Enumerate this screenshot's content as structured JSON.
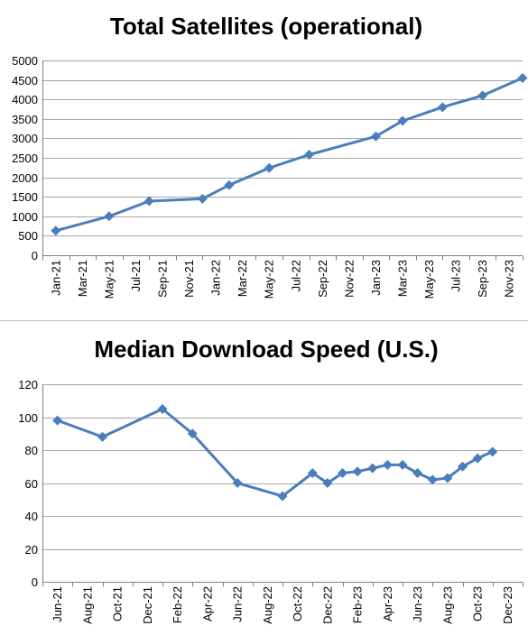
{
  "chart_data": [
    {
      "type": "line",
      "title": "Total Satellites (operational)",
      "xlabel": "",
      "ylabel": "",
      "ylim": [
        0,
        5000
      ],
      "y_step": 500,
      "grid": true,
      "legend": "none",
      "color": "#4a7ebb",
      "marker": "diamond",
      "categories": [
        "Jan-21",
        "Mar-21",
        "May-21",
        "Jul-21",
        "Sep-21",
        "Nov-21",
        "Jan-22",
        "Mar-22",
        "May-22",
        "Jul-22",
        "Sep-22",
        "Nov-22",
        "Jan-23",
        "Mar-23",
        "May-23",
        "Jul-23",
        "Sep-23",
        "Nov-23"
      ],
      "points": [
        {
          "x": "Jan-21",
          "y": 630
        },
        {
          "x": "May-21",
          "y": 1000
        },
        {
          "x": "Aug-21",
          "y": 1390
        },
        {
          "x": "Dec-21",
          "y": 1450
        },
        {
          "x": "Feb-22",
          "y": 1800
        },
        {
          "x": "May-22",
          "y": 2240
        },
        {
          "x": "Aug-22",
          "y": 2580
        },
        {
          "x": "Jan-23",
          "y": 3050
        },
        {
          "x": "Mar-23",
          "y": 3450
        },
        {
          "x": "Jun-23",
          "y": 3800
        },
        {
          "x": "Sep-23",
          "y": 4100
        },
        {
          "x": "Dec-23",
          "y": 4550
        }
      ]
    },
    {
      "type": "line",
      "title": "Median Download Speed (U.S.)",
      "xlabel": "",
      "ylabel": "",
      "ylim": [
        0,
        120
      ],
      "y_step": 20,
      "grid": true,
      "legend": "none",
      "color": "#4a7ebb",
      "marker": "diamond",
      "categories": [
        "Jun-21",
        "Aug-21",
        "Oct-21",
        "Dec-21",
        "Feb-22",
        "Apr-22",
        "Jun-22",
        "Aug-22",
        "Oct-22",
        "Dec-22",
        "Feb-23",
        "Apr-23",
        "Jun-23",
        "Aug-23",
        "Oct-23",
        "Dec-23"
      ],
      "points": [
        {
          "x": "Jun-21",
          "y": 98
        },
        {
          "x": "Sep-21",
          "y": 88
        },
        {
          "x": "Jan-22",
          "y": 105
        },
        {
          "x": "Mar-22",
          "y": 90
        },
        {
          "x": "Jun-22",
          "y": 60
        },
        {
          "x": "Sep-22",
          "y": 52
        },
        {
          "x": "Nov-22",
          "y": 66
        },
        {
          "x": "Dec-22",
          "y": 60
        },
        {
          "x": "Jan-23",
          "y": 66
        },
        {
          "x": "Feb-23",
          "y": 67
        },
        {
          "x": "Mar-23",
          "y": 69
        },
        {
          "x": "Apr-23",
          "y": 71
        },
        {
          "x": "May-23",
          "y": 71
        },
        {
          "x": "Jun-23",
          "y": 66
        },
        {
          "x": "Jul-23",
          "y": 62
        },
        {
          "x": "Aug-23",
          "y": 63
        },
        {
          "x": "Sep-23",
          "y": 70
        },
        {
          "x": "Oct-23",
          "y": 75
        },
        {
          "x": "Nov-23",
          "y": 79
        }
      ]
    }
  ]
}
